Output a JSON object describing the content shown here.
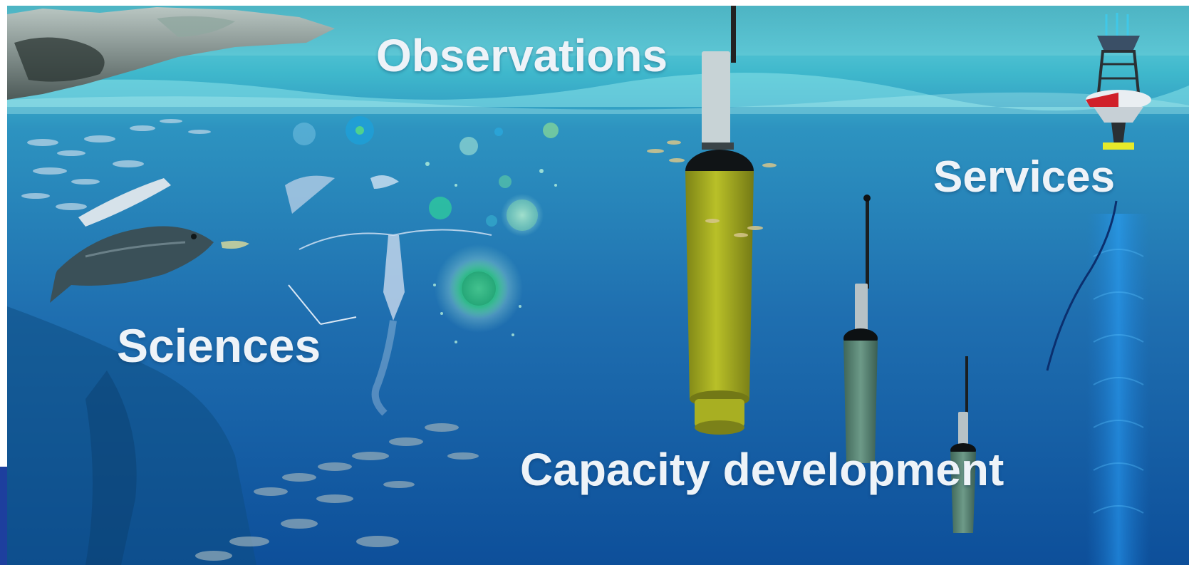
{
  "labels": {
    "observations": "Observations",
    "services": "Services",
    "sciences": "Sciences",
    "capacity": "Capacity development"
  },
  "colors": {
    "surface_water": "#3fb8cc",
    "mid_water": "#1f6fb0",
    "deep_water": "#0d4f9a",
    "float_main": "#a9b021",
    "float_secondary": "#5f8a7a",
    "buoy_red": "#d0202a",
    "left_edge_band": "#1d3f9e"
  },
  "icons": {
    "observations": "profiling-float-icon",
    "services": "buoy-icon",
    "sciences": "marine-life-icon"
  }
}
